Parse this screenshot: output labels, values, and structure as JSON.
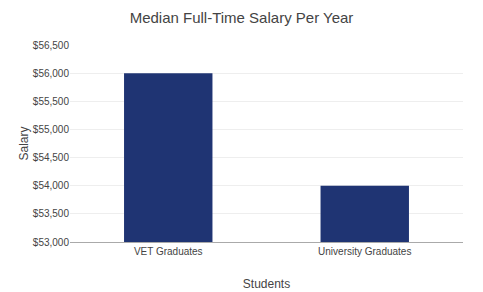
{
  "chart_data": {
    "type": "bar",
    "title": "Median Full-Time Salary Per Year",
    "xlabel": "Students",
    "ylabel": "Salary",
    "categories": [
      "VET Graduates",
      "University Graduates"
    ],
    "values": [
      56000,
      54000
    ],
    "color": "#1F3473",
    "ylim": [
      53000,
      56500
    ],
    "yticks": [
      {
        "value": 53000,
        "label": "$53,000"
      },
      {
        "value": 53500,
        "label": "$53,500"
      },
      {
        "value": 54000,
        "label": "$54,000"
      },
      {
        "value": 54500,
        "label": "$54,500"
      },
      {
        "value": 55000,
        "label": "$55,000"
      },
      {
        "value": 55500,
        "label": "$55,500"
      },
      {
        "value": 56000,
        "label": "$56,000"
      },
      {
        "value": 56500,
        "label": "$56,500"
      }
    ],
    "grid": true
  }
}
